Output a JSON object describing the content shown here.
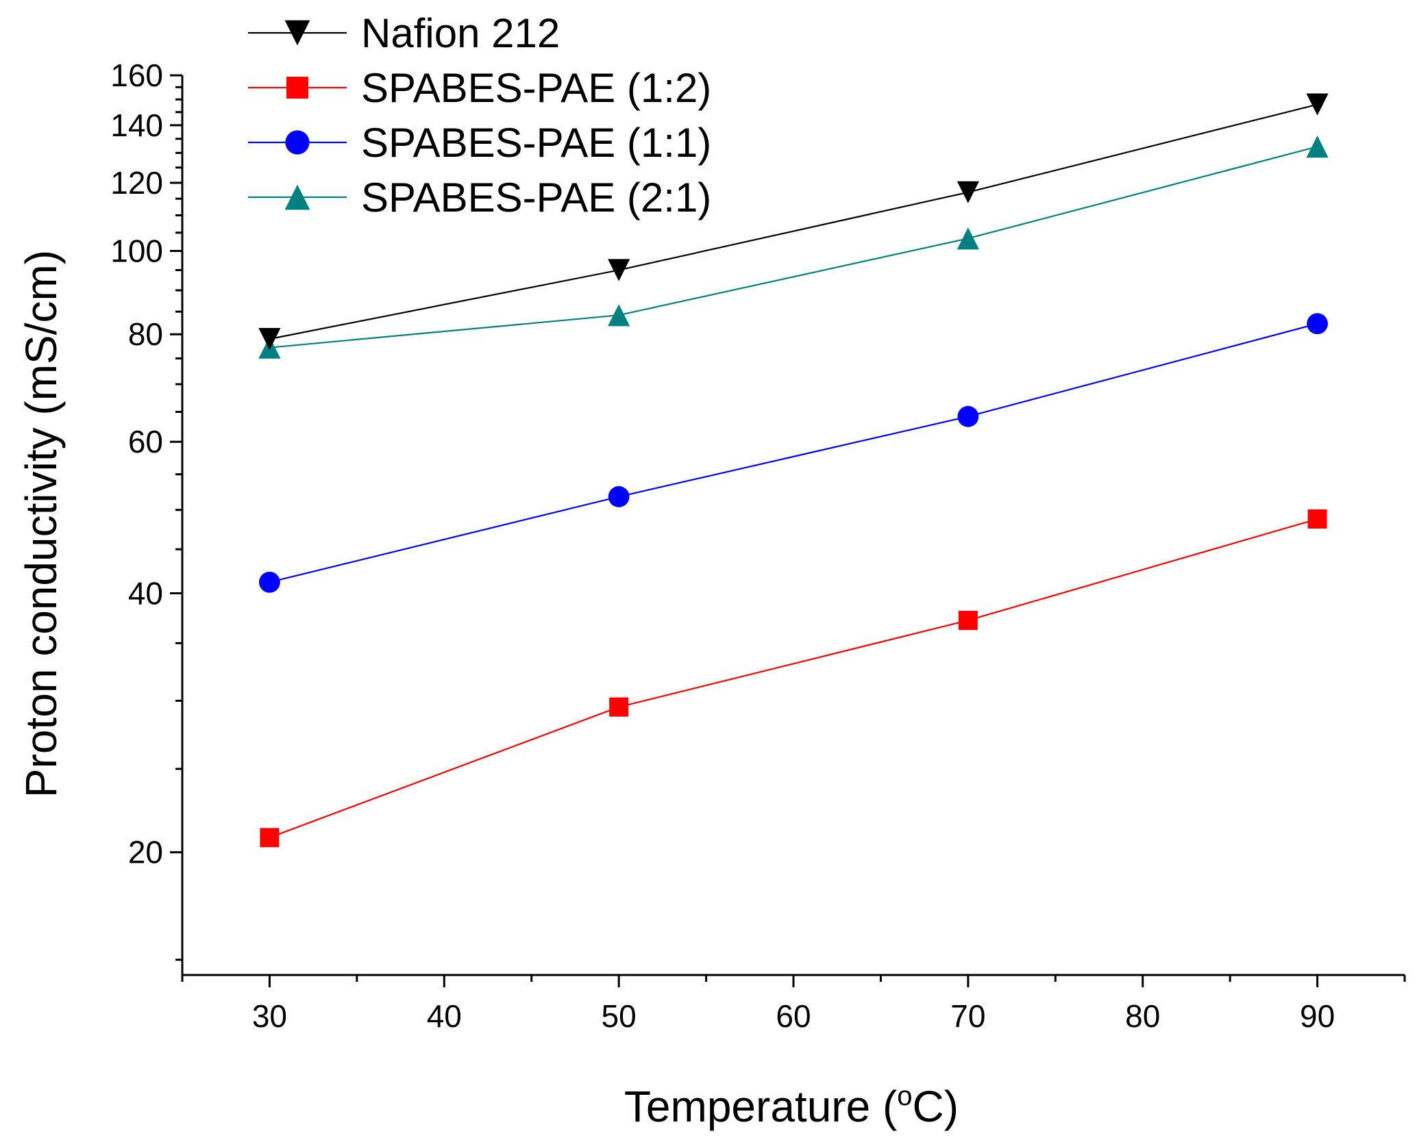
{
  "chart_data": {
    "type": "line",
    "title": "",
    "xlabel": "Temperature",
    "xlabel_unit_prefix": "(",
    "xlabel_unit_degree": "o",
    "xlabel_unit_suffix": "C)",
    "ylabel": "Proton conductivity (mS/cm)",
    "y_scale": "log",
    "xlim": [
      25,
      95
    ],
    "ylim": [
      14.4,
      160
    ],
    "x_ticks": [
      30,
      40,
      50,
      60,
      70,
      80,
      90
    ],
    "y_ticks": [
      20,
      40,
      60,
      80,
      100,
      120,
      140,
      160
    ],
    "x": [
      30,
      50,
      70,
      90
    ],
    "legend_position": "top-left",
    "series": [
      {
        "name": "Nafion 212",
        "color": "#000000",
        "marker": "triangle-down",
        "values": [
          79,
          95,
          117,
          148
        ]
      },
      {
        "name": "SPABES-PAE (1:2)",
        "color": "#ff0000",
        "marker": "square",
        "values": [
          20.8,
          29.5,
          37.2,
          48.8
        ]
      },
      {
        "name": "SPABES-PAE (1:1)",
        "color": "#0000ff",
        "marker": "circle",
        "values": [
          41.2,
          51.8,
          64.2,
          82.3
        ]
      },
      {
        "name": "SPABES-PAE (2:1)",
        "color": "#008080",
        "marker": "triangle-up",
        "values": [
          77.2,
          84.2,
          103.4,
          132.2
        ]
      }
    ]
  }
}
